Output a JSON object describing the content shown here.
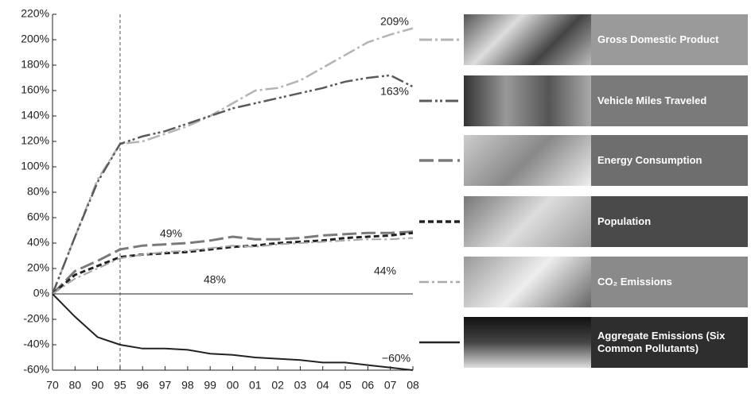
{
  "chart_data": {
    "type": "line",
    "categories": [
      "70",
      "80",
      "90",
      "95",
      "96",
      "97",
      "98",
      "99",
      "00",
      "01",
      "02",
      "03",
      "04",
      "05",
      "06",
      "07",
      "08"
    ],
    "ylim": [
      -60,
      220
    ],
    "yticks": [
      {
        "value": -60,
        "label": "-60%"
      },
      {
        "value": -40,
        "label": "-40%"
      },
      {
        "value": -20,
        "label": "-20%"
      },
      {
        "value": 0,
        "label": "0%"
      },
      {
        "value": 20,
        "label": "20%"
      },
      {
        "value": 40,
        "label": "40%"
      },
      {
        "value": 60,
        "label": "60%"
      },
      {
        "value": 80,
        "label": "80%"
      },
      {
        "value": 100,
        "label": "100%"
      },
      {
        "value": 120,
        "label": "120%"
      },
      {
        "value": 140,
        "label": "140%"
      },
      {
        "value": 160,
        "label": "160%"
      },
      {
        "value": 180,
        "label": "180%"
      },
      {
        "value": 200,
        "label": "200%"
      },
      {
        "value": 220,
        "label": "220%"
      }
    ],
    "series": [
      {
        "name": "Gross Domestic Product",
        "color": "#b4b4b4",
        "values": [
          0,
          45,
          90,
          118,
          120,
          126,
          132,
          140,
          150,
          160,
          162,
          168,
          178,
          188,
          198,
          204,
          209
        ],
        "value_labels": [
          null,
          null,
          null,
          null,
          null,
          null,
          null,
          null,
          null,
          null,
          null,
          null,
          null,
          null,
          null,
          null,
          "209%"
        ]
      },
      {
        "name": "Vehicle Miles Traveled",
        "color": "#5a5a5a",
        "values": [
          0,
          45,
          88,
          118,
          124,
          128,
          134,
          140,
          146,
          150,
          154,
          158,
          162,
          167,
          170,
          172,
          163
        ],
        "value_labels": [
          null,
          null,
          null,
          null,
          null,
          null,
          null,
          null,
          null,
          null,
          null,
          null,
          null,
          null,
          null,
          null,
          "163%"
        ]
      },
      {
        "name": "Energy Consumption",
        "color": "#7a7a7a",
        "values": [
          0,
          18,
          26,
          35,
          38,
          39,
          40,
          42,
          45,
          43,
          43,
          44,
          46,
          47,
          48,
          48,
          49
        ],
        "value_labels": [
          null,
          null,
          null,
          null,
          null,
          null,
          null,
          null,
          null,
          null,
          null,
          null,
          null,
          null,
          null,
          null,
          "49%"
        ]
      },
      {
        "name": "Population",
        "color": "#222222",
        "values": [
          0,
          15,
          22,
          29,
          31,
          32,
          33,
          35,
          37,
          38,
          40,
          41,
          42,
          44,
          45,
          46,
          48
        ],
        "value_labels": [
          null,
          null,
          null,
          null,
          null,
          null,
          null,
          null,
          null,
          null,
          null,
          null,
          null,
          null,
          null,
          null,
          "48%"
        ]
      },
      {
        "name": "CO₂ Emissions",
        "color": "#a8a8a8",
        "values": [
          0,
          12,
          20,
          28,
          31,
          33,
          34,
          36,
          38,
          37,
          39,
          40,
          41,
          42,
          43,
          43,
          44
        ],
        "value_labels": [
          null,
          null,
          null,
          null,
          null,
          null,
          null,
          null,
          null,
          null,
          null,
          null,
          null,
          null,
          null,
          null,
          "44%"
        ]
      },
      {
        "name": "Aggregate Emissions (Six Common Pollutants)",
        "color": "#222222",
        "values": [
          0,
          -18,
          -34,
          -40,
          -43,
          -43,
          -44,
          -47,
          -48,
          -50,
          -51,
          -52,
          -54,
          -54,
          -56,
          -58,
          -60
        ],
        "value_labels": [
          null,
          null,
          null,
          null,
          null,
          null,
          null,
          null,
          null,
          null,
          null,
          null,
          null,
          null,
          null,
          null,
          "−60%"
        ]
      }
    ]
  }
}
